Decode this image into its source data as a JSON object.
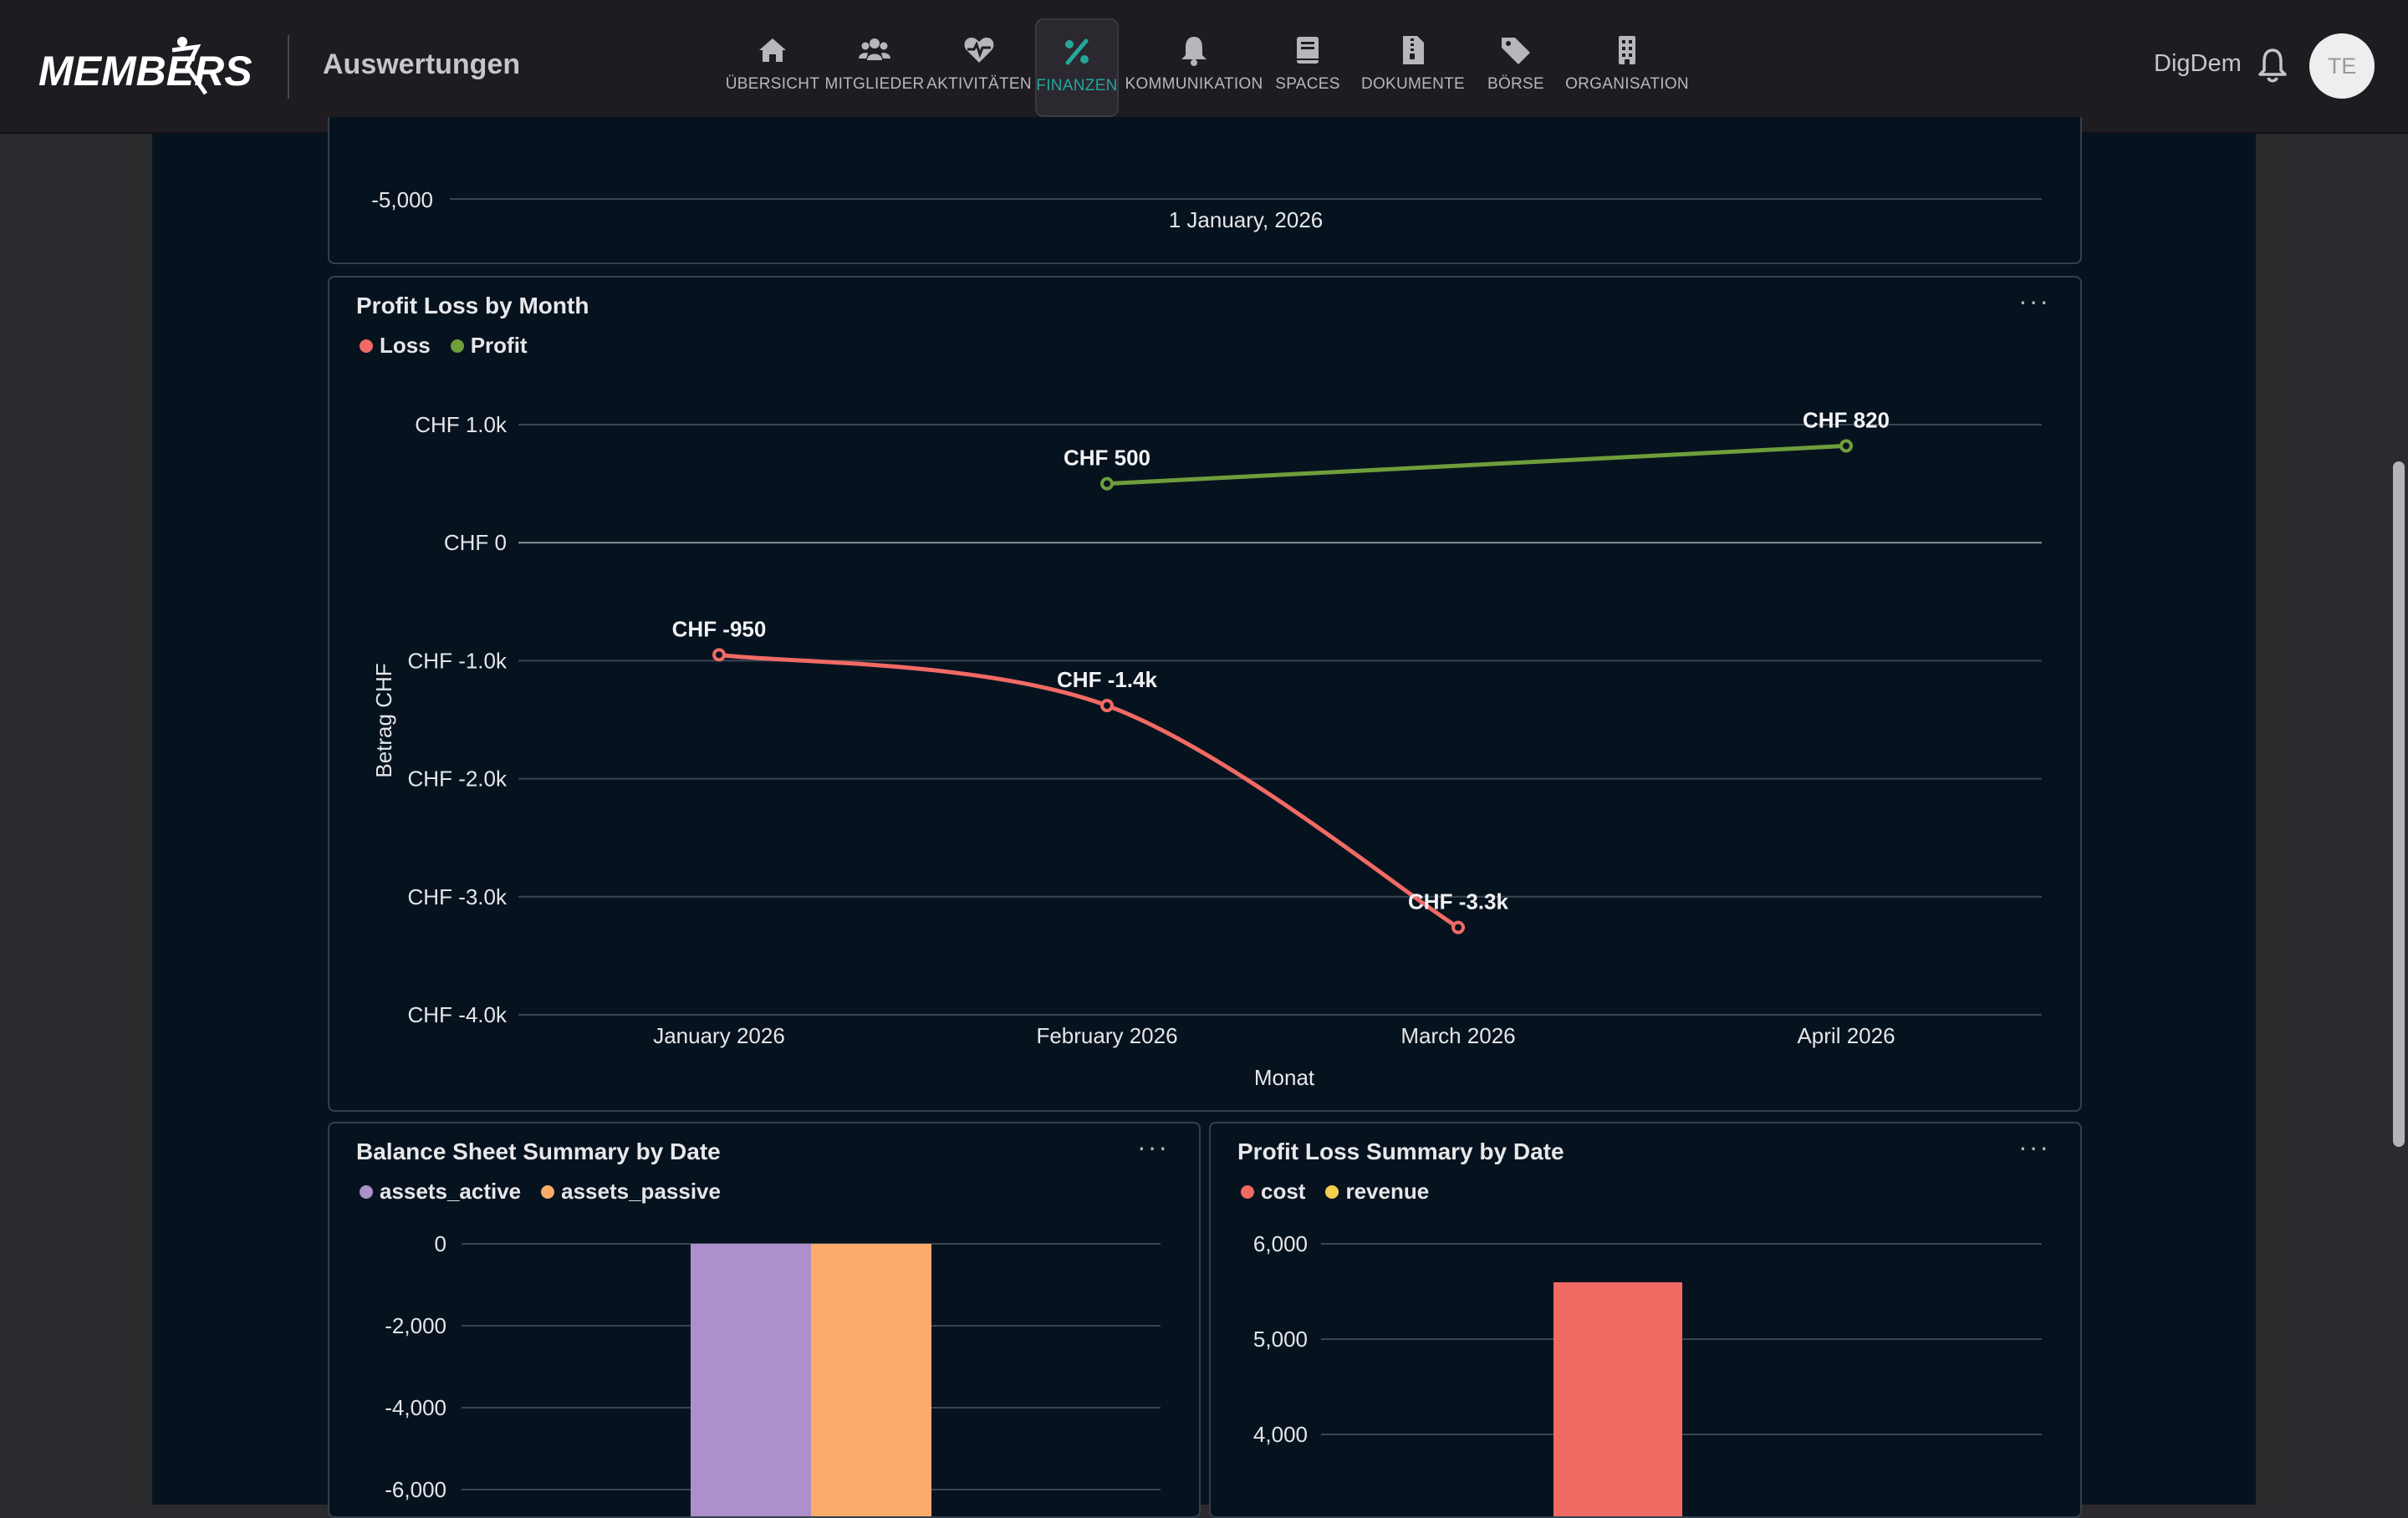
{
  "header": {
    "logo_text": "MEMBERS",
    "section_title": "Auswertungen",
    "user_name": "DigDem",
    "avatar_initials": "TE"
  },
  "nav": [
    {
      "label": "ÜBERSICHT",
      "icon": "home-icon"
    },
    {
      "label": "MITGLIEDER",
      "icon": "users-icon"
    },
    {
      "label": "AKTIVITÄTEN",
      "icon": "heart-pulse-icon"
    },
    {
      "label": "FINANZEN",
      "icon": "percent-icon",
      "active": true
    },
    {
      "label": "KOMMUNIKATION",
      "icon": "bell-icon"
    },
    {
      "label": "SPACES",
      "icon": "book-icon"
    },
    {
      "label": "DOKUMENTE",
      "icon": "file-zip-icon"
    },
    {
      "label": "BÖRSE",
      "icon": "tags-icon"
    },
    {
      "label": "ORGANISATION",
      "icon": "building-icon"
    }
  ],
  "colors": {
    "accent": "#26a69a",
    "loss": "#f26a64",
    "profit": "#6f9e3b",
    "assets_active": "#ad8fcb",
    "assets_passive": "#fdab6a",
    "cost": "#f26a64",
    "revenue": "#f5cf4e"
  },
  "panels": {
    "top_partial": {
      "y_tick": "-5,000",
      "x_tick": "1 January, 2026"
    },
    "profit_loss_by_month": {
      "title": "Profit Loss by Month",
      "menu": "···"
    },
    "balance_sheet_summary": {
      "title": "Balance Sheet Summary by Date",
      "menu": "···"
    },
    "profit_loss_summary": {
      "title": "Profit Loss Summary by Date",
      "menu": "···"
    }
  },
  "chart_data": [
    {
      "type": "bar",
      "visible_partially": true,
      "yticks": [
        "-5,000"
      ],
      "categories": [
        "1 January, 2026"
      ]
    },
    {
      "type": "line",
      "title": "Profit Loss by Month",
      "xlabel": "Monat",
      "ylabel": "Betrag CHF",
      "categories": [
        "January 2026",
        "February 2026",
        "March 2026",
        "April 2026"
      ],
      "yticks": [
        "CHF 1.0k",
        "CHF 0",
        "CHF -1.0k",
        "CHF -2.0k",
        "CHF -3.0k",
        "CHF -4.0k"
      ],
      "ylim": [
        -4000,
        1000
      ],
      "legend": "top-left",
      "grid": true,
      "series": [
        {
          "name": "Loss",
          "color": "#f26a64",
          "points": [
            {
              "x": "January 2026",
              "y": -950,
              "label": "CHF -950"
            },
            {
              "x": "February 2026",
              "y": -1380,
              "label": "CHF -1.4k"
            },
            {
              "x": "March 2026",
              "y": -3260,
              "label": "CHF -3.3k"
            }
          ]
        },
        {
          "name": "Profit",
          "color": "#6f9e3b",
          "points": [
            {
              "x": "February 2026",
              "y": 500,
              "label": "CHF 500"
            },
            {
              "x": "April 2026",
              "y": 820,
              "label": "CHF 820"
            }
          ]
        }
      ]
    },
    {
      "type": "bar",
      "title": "Balance Sheet Summary by Date",
      "yticks": [
        "0",
        "-2,000",
        "-4,000",
        "-6,000"
      ],
      "legend": "top-left",
      "grid": true,
      "series": [
        {
          "name": "assets_active",
          "color": "#ad8fcb"
        },
        {
          "name": "assets_passive",
          "color": "#fdab6a"
        }
      ]
    },
    {
      "type": "bar",
      "title": "Profit Loss Summary by Date",
      "yticks": [
        "6,000",
        "5,000",
        "4,000"
      ],
      "legend": "top-left",
      "grid": true,
      "series": [
        {
          "name": "cost",
          "color": "#f26a64",
          "values": [
            5580
          ]
        },
        {
          "name": "revenue",
          "color": "#f5cf4e"
        }
      ]
    }
  ]
}
